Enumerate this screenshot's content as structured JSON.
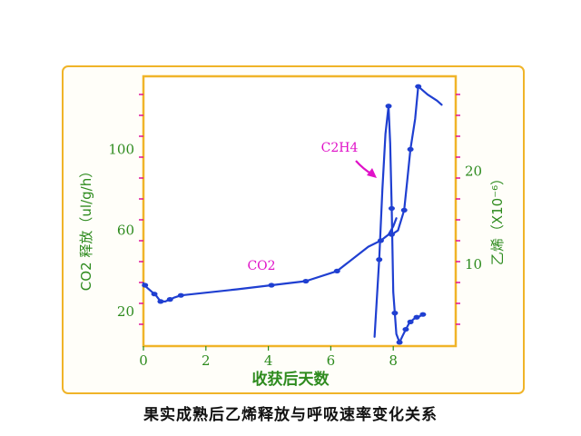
{
  "caption": "果实成熟后乙烯释放与呼吸速率变化关系",
  "colors": {
    "frame_border": "#f0b429",
    "plot_border": "#f0b429",
    "series": "#1f3fd1",
    "label_magenta": "#e012c8",
    "axis_text": "#2e8b1e",
    "tick_magenta": "#e01296"
  },
  "chart_data": {
    "type": "line",
    "xlabel": "收获后天数",
    "ylabel_left": "CO2 释放（ul/g/h）",
    "ylabel_right": "乙烯（X10⁻⁶）",
    "x_ticks": [
      "0",
      "2",
      "4",
      "6",
      "8"
    ],
    "y_left_ticks": [
      "20",
      "60",
      "100"
    ],
    "y_right_ticks": [
      "10",
      "20"
    ],
    "xlim": [
      0,
      10
    ],
    "ylim_left": [
      3,
      136
    ],
    "ylim_right": [
      1.2,
      30.2
    ],
    "grid": false,
    "annotations": [
      {
        "text": "C2H4",
        "target_series": "C2H4"
      },
      {
        "text": "CO2",
        "target_series": "CO2"
      }
    ],
    "series": [
      {
        "name": "CO2",
        "axis": "left",
        "marker_x": [
          0.05,
          0.35,
          0.55,
          0.85,
          1.2,
          4.1,
          5.2,
          6.2,
          7.6
        ],
        "x": [
          0.0,
          0.1,
          0.25,
          0.4,
          0.55,
          0.7,
          0.85,
          1.0,
          1.2,
          3.0,
          4.1,
          5.2,
          6.2,
          7.2,
          7.6,
          7.85,
          8.0,
          8.1
        ],
        "y": [
          34,
          32,
          30,
          28,
          25,
          25,
          26,
          27,
          28,
          31,
          33,
          35,
          40,
          52,
          55,
          58,
          62,
          66
        ]
      },
      {
        "name": "C2H4",
        "axis": "right",
        "marker_x": [
          7.55,
          7.85,
          7.95,
          8.05,
          8.2,
          8.4,
          8.55,
          8.75,
          8.95
        ],
        "x": [
          7.4,
          7.55,
          7.65,
          7.75,
          7.85,
          7.9,
          7.95,
          8.0,
          8.1,
          8.2,
          8.3,
          8.4,
          8.5,
          8.55,
          8.65,
          8.75,
          8.85,
          8.9,
          8.95
        ],
        "y": [
          2.2,
          10.5,
          18,
          24,
          27,
          23,
          16,
          7,
          2.5,
          1.6,
          2.3,
          3.0,
          3.6,
          3.8,
          4.1,
          4.3,
          4.4,
          4.5,
          4.6
        ]
      },
      {
        "name": "",
        "axis": "left",
        "marker_x": [
          7.95,
          8.35,
          8.55,
          8.8
        ],
        "x": [
          7.95,
          8.15,
          8.35,
          8.45,
          8.55,
          8.7,
          8.8,
          9.1,
          9.4,
          9.55
        ],
        "y": [
          58,
          60,
          70,
          85,
          100,
          115,
          131,
          127,
          124,
          122
        ]
      }
    ]
  }
}
